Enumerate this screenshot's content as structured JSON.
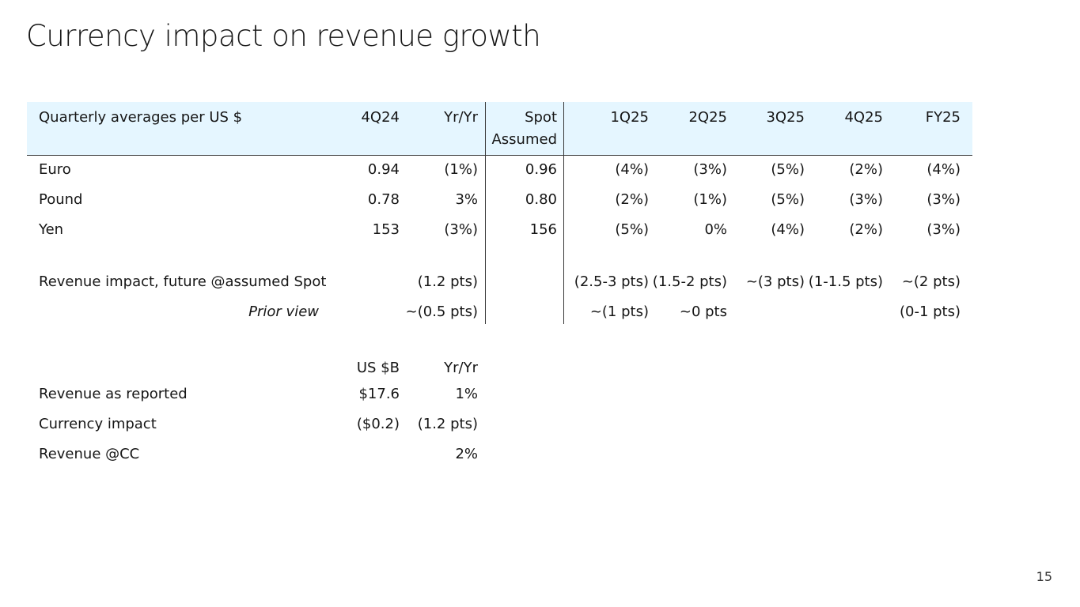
{
  "title": "Currency impact on revenue growth",
  "table": {
    "header": {
      "label": "Quarterly averages per US $",
      "col_4q24": "4Q24",
      "col_yryr": "Yr/Yr",
      "col_spot_line1": "Spot",
      "col_spot_line2": "Assumed",
      "col_1q25": "1Q25",
      "col_2q25": "2Q25",
      "col_3q25": "3Q25",
      "col_4q25": "4Q25",
      "col_fy25": "FY25"
    },
    "rows": [
      {
        "label": "Euro",
        "v4q24": "0.94",
        "yryr": "(1%)",
        "spot": "0.96",
        "q1": "(4%)",
        "q2": "(3%)",
        "q3": "(5%)",
        "q4": "(2%)",
        "fy": "(4%)"
      },
      {
        "label": "Pound",
        "v4q24": "0.78",
        "yryr": "3%",
        "spot": "0.80",
        "q1": "(2%)",
        "q2": "(1%)",
        "q3": "(5%)",
        "q4": "(3%)",
        "fy": "(3%)"
      },
      {
        "label": "Yen",
        "v4q24": "153",
        "yryr": "(3%)",
        "spot": "156",
        "q1": "(5%)",
        "q2": "0%",
        "q3": "(4%)",
        "q4": "(2%)",
        "fy": "(3%)"
      }
    ],
    "impact": {
      "label": "Revenue impact, future @assumed Spot",
      "yryr": "(1.2 pts)",
      "q1": "(2.5-3 pts)",
      "q2": "(1.5-2 pts)",
      "q3": "~(3 pts)",
      "q4": "(1-1.5 pts)",
      "fy": "~(2 pts)"
    },
    "prior": {
      "label": "Prior view",
      "yryr": "~(0.5 pts)",
      "q1": "~(1 pts)",
      "q2": "~0 pts",
      "fy": "(0-1 pts)"
    }
  },
  "summary": {
    "header_usb": "US $B",
    "header_yryr": "Yr/Yr",
    "rows": [
      {
        "label": "Revenue as reported",
        "usb": "$17.6",
        "yryr": "1%"
      },
      {
        "label": "Currency impact",
        "usb": "($0.2)",
        "yryr": "(1.2 pts)"
      },
      {
        "label": "Revenue @CC",
        "usb": "",
        "yryr": "2%"
      }
    ]
  },
  "page_number": "15"
}
